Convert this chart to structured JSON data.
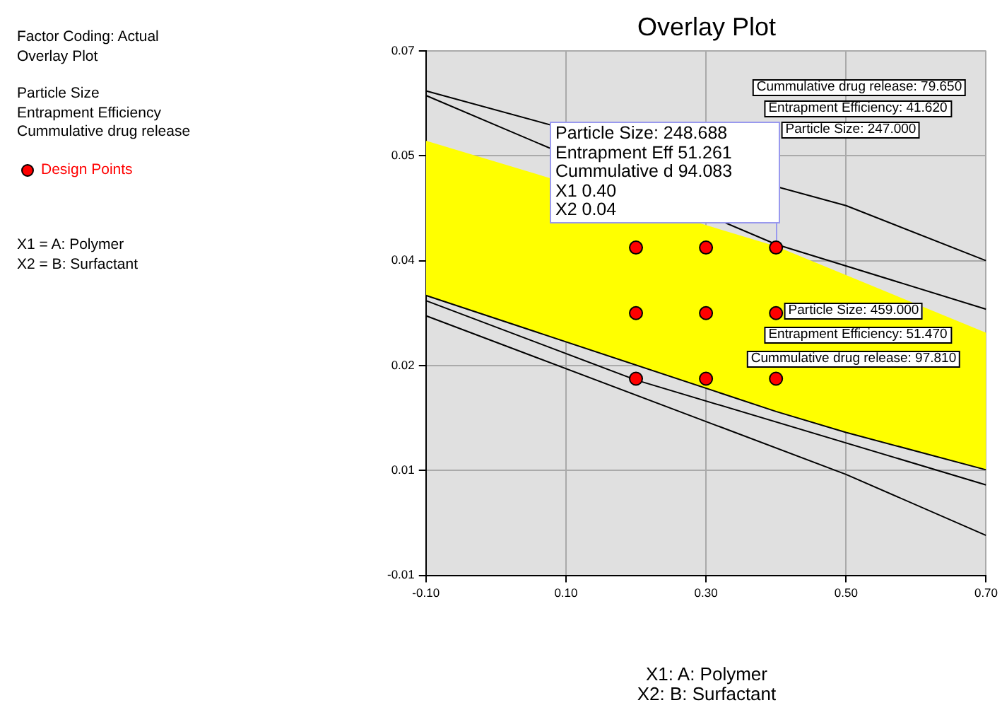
{
  "chart_data": {
    "type": "scatter",
    "title": "Overlay Plot",
    "xlabel": "X1: A: Polymer",
    "xlim": [
      -0.1,
      0.7
    ],
    "xticks": [
      {
        "value": -0.1,
        "label": "-0.10"
      },
      {
        "value": 0.1,
        "label": "0.10"
      },
      {
        "value": 0.3,
        "label": "0.30"
      },
      {
        "value": 0.5,
        "label": "0.50"
      },
      {
        "value": 0.7,
        "label": "0.70"
      }
    ],
    "ylim": [
      -0.01,
      0.07
    ],
    "yticks": [
      {
        "value": -0.01,
        "label": "-0.01"
      },
      {
        "value": 0.006,
        "label": "0.01"
      },
      {
        "value": 0.022,
        "label": "0.02"
      },
      {
        "value": 0.038,
        "label": "0.04"
      },
      {
        "value": 0.054,
        "label": "0.05"
      },
      {
        "value": 0.07,
        "label": "0.07"
      }
    ],
    "grid": true,
    "legend": "left",
    "series": [
      {
        "type": "area",
        "color": "#ffff00",
        "x": [
          -0.1,
          0.4,
          0.5,
          0.7
        ],
        "values": [
          0.0563,
          0.0402,
          0.0358,
          0.027
        ]
      },
      {
        "type": "line",
        "color": "#000000",
        "x": [
          -0.1,
          0.4,
          0.5,
          0.7
        ],
        "values": [
          0.0327,
          0.015,
          0.0118,
          0.0061
        ]
      },
      {
        "type": "line",
        "color": "#000000",
        "x": [
          -0.1,
          0.2,
          0.7
        ],
        "values": [
          0.0319,
          0.0198,
          0.0038
        ]
      },
      {
        "type": "line",
        "color": "#000000",
        "x": [
          -0.1,
          0.5,
          0.7
        ],
        "values": [
          0.0296,
          0.0054,
          -0.0039
        ]
      },
      {
        "type": "line",
        "color": "#000000",
        "x": [
          -0.1,
          0.5,
          0.7
        ],
        "values": [
          0.0639,
          0.0464,
          0.038
        ]
      },
      {
        "type": "line",
        "color": "#000000",
        "x": [
          -0.1,
          0.4,
          0.7
        ],
        "values": [
          0.0632,
          0.0405,
          0.0306
        ]
      },
      {
        "type": "scatter",
        "name": "Design Points",
        "color": "#ff0000",
        "marker": "circle",
        "x": [
          0.2,
          0.3,
          0.4,
          0.2,
          0.3,
          0.4,
          0.2,
          0.3,
          0.4
        ],
        "values": [
          0.04,
          0.04,
          0.04,
          0.03,
          0.03,
          0.03,
          0.02,
          0.02,
          0.02
        ]
      }
    ],
    "annotations": [
      "Factor Coding: Actual",
      "Overlay Plot",
      "Particle Size",
      "Entrapment Efficiency",
      "Cummulative drug release",
      "X1 = A: Polymer",
      "X2 = B: Surfactant",
      "X2: B: Surfactant",
      "Cummulative drug release: 79.650",
      "Entrapment Efficiency: 41.620",
      "Particle Size: 247.000",
      "Particle Size: 459.000",
      "Entrapment Efficiency: 51.470",
      "Cummulative drug release: 97.810",
      "Particle Size: 248.688",
      "Entrapment Eff 51.261",
      "Cummulative d 94.083",
      "X1 0.40",
      "X2 0.04"
    ]
  }
}
